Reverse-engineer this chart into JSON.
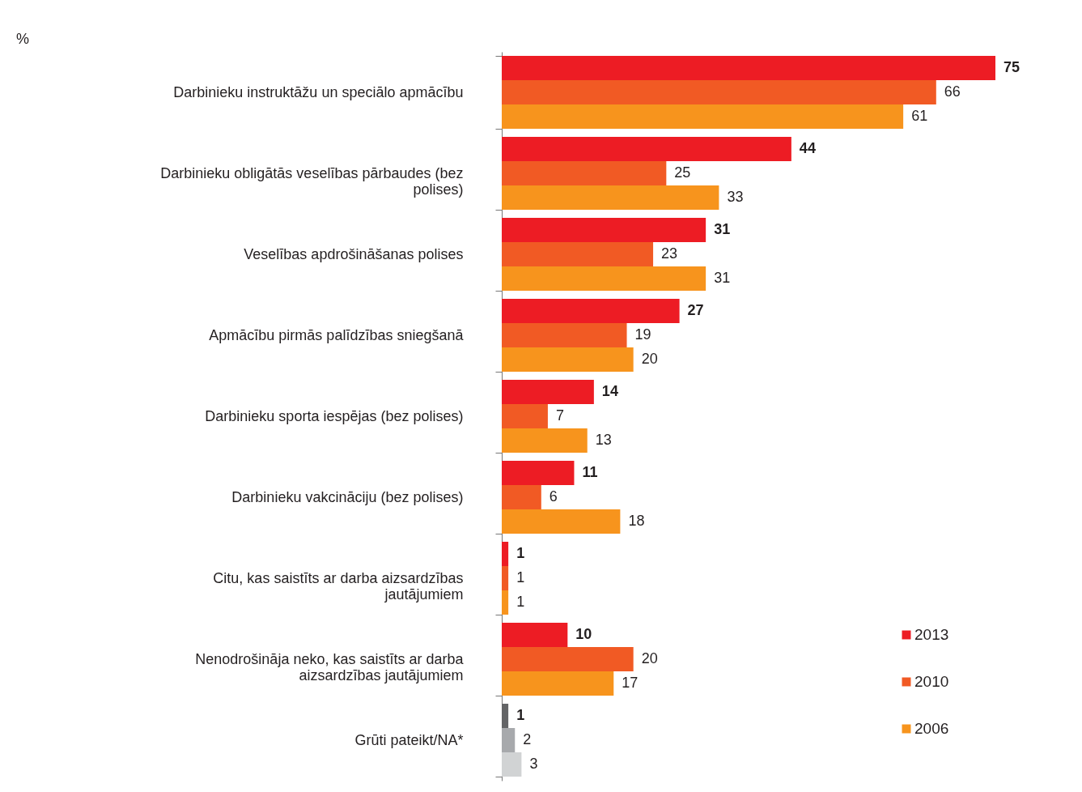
{
  "chart_data": {
    "type": "bar",
    "orientation": "horizontal",
    "data_labels": true,
    "legend": "bottom right",
    "annotations": [
      "%"
    ],
    "categories": [
      "Darbinieku instruktāžu un speciālo apmācību",
      "Darbinieku obligātās veselības pārbaudes (bez polises)",
      "Veselības apdrošināšanas polises",
      "Apmācību pirmās palīdzības sniegšanā",
      "Darbinieku sporta iespējas (bez polises)",
      "Darbinieku vakcināciju (bez polises)",
      "Citu, kas saistīts ar darba aizsardzības jautājumiem",
      "Nenodrošināja neko, kas saistīts ar darba aizsardzības jautājumiem",
      "Grūti pateikt/NA*"
    ],
    "series": [
      {
        "name": "2013",
        "color": "#ed1c24",
        "colors": [
          "#ed1c24",
          "#ed1c24",
          "#ed1c24",
          "#ed1c24",
          "#ed1c24",
          "#ed1c24",
          "#ed1c24",
          "#ed1c24",
          "#636466"
        ],
        "values": [
          75,
          44,
          31,
          27,
          14,
          11,
          1,
          10,
          1
        ]
      },
      {
        "name": "2010",
        "color": "#f15a24",
        "colors": [
          "#f15a24",
          "#f15a24",
          "#f15a24",
          "#f15a24",
          "#f15a24",
          "#f15a24",
          "#f15a24",
          "#f15a24",
          "#a7a9ac"
        ],
        "values": [
          66,
          25,
          23,
          19,
          7,
          6,
          1,
          20,
          2
        ]
      },
      {
        "name": "2006",
        "color": "#f7941d",
        "colors": [
          "#f7941d",
          "#f7941d",
          "#f7941d",
          "#f7941d",
          "#f7941d",
          "#f7941d",
          "#f7941d",
          "#f7941d",
          "#d1d3d4"
        ],
        "values": [
          61,
          33,
          31,
          20,
          13,
          18,
          1,
          17,
          3
        ]
      }
    ]
  }
}
